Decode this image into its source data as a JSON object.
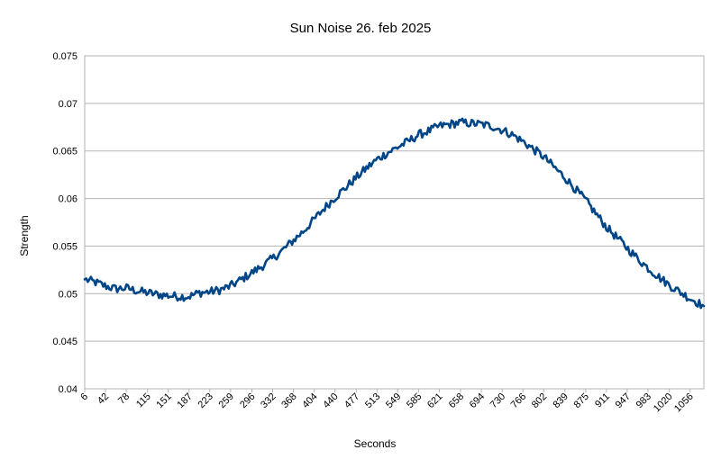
{
  "chart_data": {
    "type": "line",
    "title": "Sun Noise 26. feb 2025",
    "xlabel": "Seconds",
    "ylabel": "Strength",
    "ylim": [
      0.04,
      0.075
    ],
    "yticks": [
      "0.04",
      "0.045",
      "0.05",
      "0.055",
      "0.06",
      "0.065",
      "0.07",
      "0.075"
    ],
    "xlim": [
      6,
      1080
    ],
    "xticks": [
      6,
      42,
      78,
      115,
      151,
      187,
      223,
      259,
      296,
      332,
      368,
      404,
      440,
      477,
      513,
      549,
      585,
      621,
      658,
      694,
      730,
      766,
      802,
      839,
      875,
      911,
      947,
      983,
      1020,
      1056
    ],
    "grid": true,
    "legend": "none",
    "line_color": "#004586",
    "x": [
      6,
      24,
      42,
      60,
      78,
      96,
      115,
      133,
      151,
      169,
      187,
      205,
      223,
      241,
      259,
      278,
      296,
      314,
      332,
      350,
      368,
      386,
      404,
      422,
      440,
      458,
      477,
      495,
      513,
      531,
      549,
      567,
      585,
      603,
      621,
      639,
      658,
      676,
      694,
      712,
      730,
      748,
      766,
      784,
      802,
      820,
      839,
      857,
      875,
      893,
      911,
      929,
      947,
      965,
      983,
      1001,
      1020,
      1038,
      1056,
      1074,
      1080
    ],
    "values": [
      0.0515,
      0.0512,
      0.0508,
      0.0505,
      0.0506,
      0.0503,
      0.0501,
      0.0499,
      0.0498,
      0.0497,
      0.0497,
      0.0501,
      0.0502,
      0.0504,
      0.0508,
      0.0515,
      0.0522,
      0.0529,
      0.0537,
      0.0546,
      0.0556,
      0.0566,
      0.0578,
      0.059,
      0.0601,
      0.0611,
      0.0622,
      0.0632,
      0.0641,
      0.0648,
      0.0654,
      0.066,
      0.0667,
      0.0671,
      0.0676,
      0.0678,
      0.068,
      0.0679,
      0.0678,
      0.0676,
      0.0672,
      0.0667,
      0.066,
      0.0652,
      0.0644,
      0.0633,
      0.0622,
      0.061,
      0.0598,
      0.0584,
      0.057,
      0.0559,
      0.0548,
      0.0537,
      0.0527,
      0.0518,
      0.0509,
      0.0502,
      0.0495,
      0.0489,
      0.0487
    ]
  }
}
